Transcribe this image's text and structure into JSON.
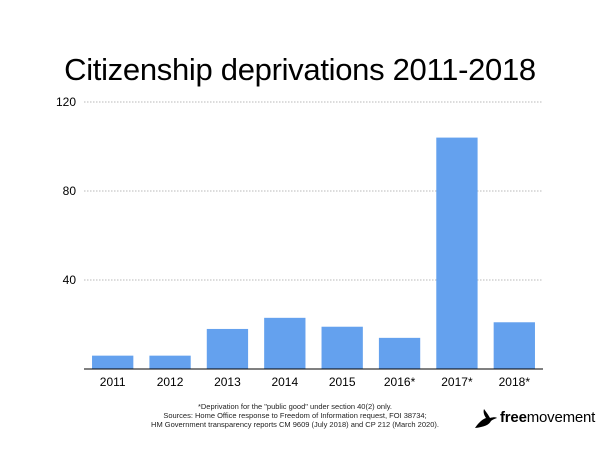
{
  "chart_data": {
    "type": "bar",
    "title": "Citizenship deprivations 2011-2018",
    "categories": [
      "2011",
      "2012",
      "2013",
      "2014",
      "2015",
      "2016*",
      "2017*",
      "2018*"
    ],
    "values": [
      6,
      6,
      18,
      23,
      19,
      14,
      104,
      21
    ],
    "ylim": [
      0,
      120
    ],
    "yticks": [
      "40",
      "80",
      "120"
    ],
    "grid": true,
    "bar_color": "#64a1ee",
    "grid_color": "#b8b8b8"
  },
  "footnote": {
    "line1": "*Deprivation for the \"public good\" under section 40(2) only.",
    "line2": "Sources: Home Office response to Freedom of Information request, FOI 38734;",
    "line3": "HM Government transparency reports CM 9609 (July 2018) and CP 212 (March 2020)."
  },
  "logo": {
    "part1": "free",
    "part2": "movement",
    "icon": "bird-icon"
  }
}
